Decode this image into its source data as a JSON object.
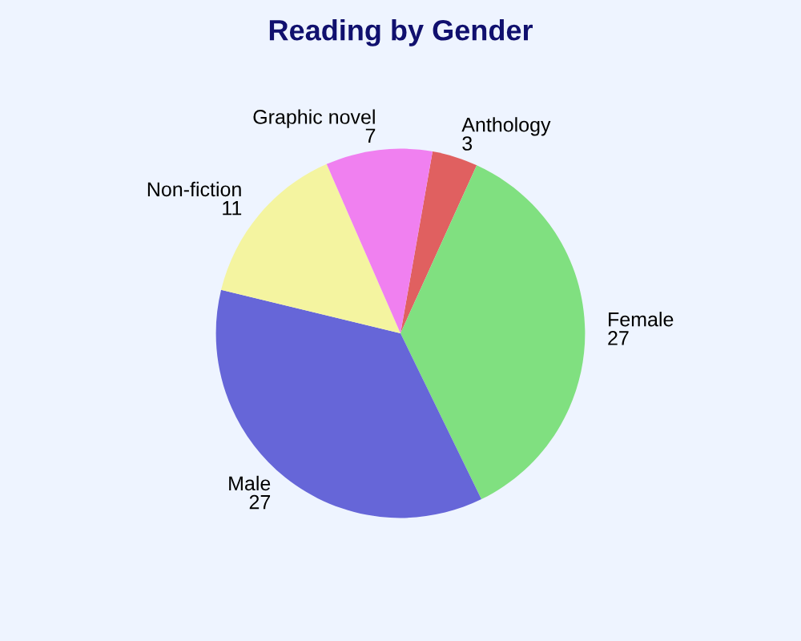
{
  "chart_data": {
    "type": "pie",
    "title": "Reading by Gender",
    "categories": [
      "Anthology",
      "Female",
      "Male",
      "Non-fiction",
      "Graphic novel"
    ],
    "values": [
      3,
      27,
      27,
      11,
      7
    ],
    "colors": [
      "#e06060",
      "#80e080",
      "#6666d8",
      "#f4f4a0",
      "#f080f0"
    ],
    "data_labels": true,
    "legend": false
  }
}
